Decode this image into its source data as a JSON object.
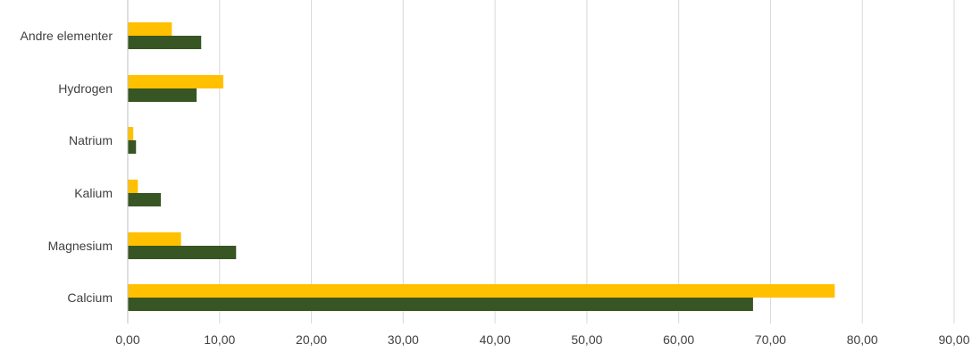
{
  "chart_data": {
    "type": "bar",
    "orientation": "horizontal",
    "title": "",
    "categories": [
      "Calcium",
      "Magnesium",
      "Kalium",
      "Natrium",
      "Hydrogen",
      "Andre elementer"
    ],
    "series": [
      {
        "values": [
          77.0,
          5.8,
          1.1,
          0.6,
          10.4,
          4.8
        ],
        "color": "#FFC000"
      },
      {
        "values": [
          68.1,
          11.8,
          3.6,
          0.9,
          7.5,
          8.0
        ],
        "color": "#375623"
      }
    ],
    "xlim": [
      0,
      90
    ],
    "xticks": [
      "0,00",
      "10,00",
      "20,00",
      "30,00",
      "40,00",
      "50,00",
      "60,00",
      "70,00",
      "80,00",
      "90,00"
    ],
    "xlabel": "",
    "ylabel": "",
    "grid": "vertical",
    "legend": "none"
  }
}
